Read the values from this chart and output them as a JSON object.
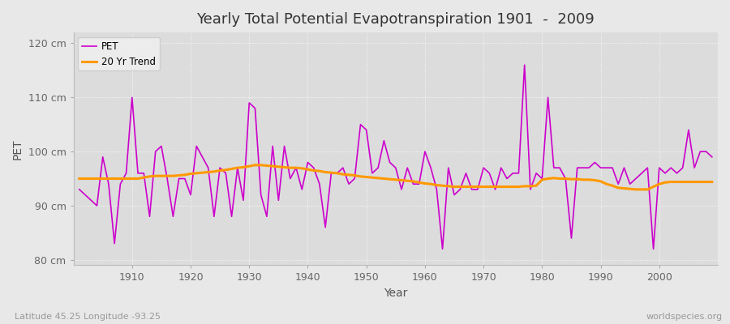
{
  "title": "Yearly Total Potential Evapotranspiration 1901  -  2009",
  "xlabel": "Year",
  "ylabel": "PET",
  "subtitle_left": "Latitude 45.25 Longitude -93.25",
  "subtitle_right": "worldspecies.org",
  "pet_color": "#cc00cc",
  "trend_color": "#ff9900",
  "fig_bg_color": "#e8e8e8",
  "plot_bg_color": "#dcdcdc",
  "ylim": [
    79,
    122
  ],
  "yticks": [
    80,
    90,
    100,
    110,
    120
  ],
  "ytick_labels": [
    "80 cm",
    "90 cm",
    "100 cm",
    "110 cm",
    "120 cm"
  ],
  "years": [
    1901,
    1902,
    1903,
    1904,
    1905,
    1906,
    1907,
    1908,
    1909,
    1910,
    1911,
    1912,
    1913,
    1914,
    1915,
    1916,
    1917,
    1918,
    1919,
    1920,
    1921,
    1922,
    1923,
    1924,
    1925,
    1926,
    1927,
    1928,
    1929,
    1930,
    1931,
    1932,
    1933,
    1934,
    1935,
    1936,
    1937,
    1938,
    1939,
    1940,
    1941,
    1942,
    1943,
    1944,
    1945,
    1946,
    1947,
    1948,
    1949,
    1950,
    1951,
    1952,
    1953,
    1954,
    1955,
    1956,
    1957,
    1958,
    1959,
    1960,
    1961,
    1962,
    1963,
    1964,
    1965,
    1966,
    1967,
    1968,
    1969,
    1970,
    1971,
    1972,
    1973,
    1974,
    1975,
    1976,
    1977,
    1978,
    1979,
    1980,
    1981,
    1982,
    1983,
    1984,
    1985,
    1986,
    1987,
    1988,
    1989,
    1990,
    1991,
    1992,
    1993,
    1994,
    1995,
    1996,
    1997,
    1998,
    1999,
    2000,
    2001,
    2002,
    2003,
    2004,
    2005,
    2006,
    2007,
    2008,
    2009
  ],
  "pet": [
    93,
    92,
    91,
    90,
    99,
    94,
    83,
    94,
    96,
    110,
    96,
    96,
    88,
    100,
    101,
    95,
    88,
    95,
    95,
    92,
    101,
    99,
    97,
    88,
    97,
    96,
    88,
    97,
    91,
    109,
    108,
    92,
    88,
    101,
    91,
    101,
    95,
    97,
    93,
    98,
    97,
    94,
    86,
    96,
    96,
    97,
    94,
    95,
    105,
    104,
    96,
    97,
    102,
    98,
    97,
    93,
    97,
    94,
    94,
    100,
    97,
    93,
    82,
    97,
    92,
    93,
    96,
    93,
    93,
    97,
    96,
    93,
    97,
    95,
    96,
    96,
    116,
    93,
    96,
    95,
    110,
    97,
    97,
    95,
    84,
    97,
    97,
    97,
    98,
    97,
    97,
    97,
    94,
    97,
    94,
    95,
    96,
    97,
    82,
    97,
    96,
    97,
    96,
    97,
    104,
    97,
    100,
    100,
    99
  ],
  "trend": [
    95.0,
    95.0,
    95.0,
    95.0,
    95.0,
    95.0,
    95.0,
    95.0,
    95.0,
    95.0,
    95.0,
    95.2,
    95.4,
    95.5,
    95.5,
    95.5,
    95.5,
    95.6,
    95.7,
    95.9,
    96.0,
    96.1,
    96.2,
    96.3,
    96.5,
    96.6,
    96.8,
    97.0,
    97.1,
    97.3,
    97.5,
    97.5,
    97.4,
    97.3,
    97.2,
    97.1,
    97.0,
    97.0,
    96.9,
    96.7,
    96.5,
    96.4,
    96.2,
    96.1,
    96.0,
    95.8,
    95.7,
    95.6,
    95.4,
    95.3,
    95.2,
    95.1,
    95.0,
    94.9,
    94.8,
    94.7,
    94.6,
    94.5,
    94.3,
    94.1,
    94.0,
    93.8,
    93.7,
    93.6,
    93.5,
    93.5,
    93.5,
    93.5,
    93.5,
    93.5,
    93.5,
    93.5,
    93.5,
    93.5,
    93.5,
    93.5,
    93.6,
    93.6,
    93.7,
    94.8,
    95.0,
    95.1,
    95.0,
    95.0,
    94.9,
    94.9,
    94.8,
    94.8,
    94.7,
    94.5,
    94.0,
    93.7,
    93.3,
    93.2,
    93.1,
    93.0,
    93.0,
    93.0,
    93.5,
    94.0,
    94.3,
    94.4,
    94.4,
    94.4,
    94.4,
    94.4,
    94.4,
    94.4,
    94.4
  ]
}
